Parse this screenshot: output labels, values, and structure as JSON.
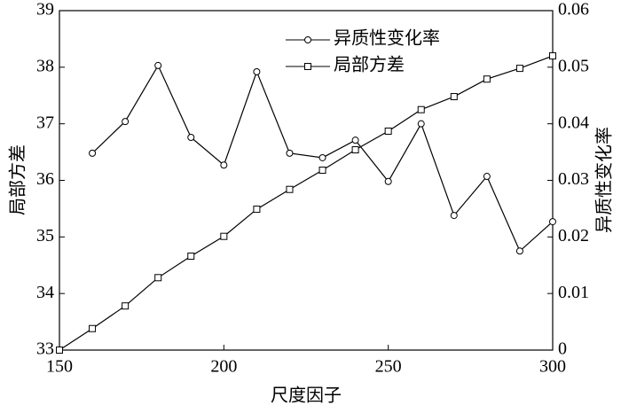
{
  "chart_data": {
    "type": "line",
    "x_label": "尺度因子",
    "y_label": "局部方差",
    "y2_label": "异质性变化率",
    "x": [
      150,
      160,
      170,
      180,
      190,
      200,
      210,
      220,
      230,
      240,
      250,
      260,
      270,
      280,
      290,
      300
    ],
    "series": [
      {
        "name": "异质性变化率",
        "color": "#000000",
        "marker": "circle",
        "axis": "y2",
        "values": [
          null,
          0.0348,
          0.0404,
          0.0503,
          0.0376,
          0.0327,
          0.0492,
          0.0348,
          0.034,
          0.0371,
          0.0298,
          0.04,
          0.0238,
          0.0307,
          0.0175,
          0.0227
        ]
      },
      {
        "name": "局部方差",
        "color": "#000000",
        "marker": "square",
        "values": [
          33.0,
          33.38,
          33.78,
          34.28,
          34.66,
          35.01,
          35.49,
          35.84,
          36.18,
          36.54,
          36.87,
          37.25,
          37.48,
          37.79,
          37.98,
          38.2
        ]
      }
    ],
    "xlim": [
      150,
      300
    ],
    "xticks": [
      150,
      200,
      250,
      300
    ],
    "ylim": [
      33,
      39
    ],
    "yticks": [
      33,
      34,
      35,
      36,
      37,
      38,
      39
    ],
    "y2lim": [
      0,
      0.06
    ],
    "y2ticks": [
      0,
      0.01,
      0.02,
      0.03,
      0.04,
      0.05,
      0.06
    ],
    "legend": "top-center"
  }
}
